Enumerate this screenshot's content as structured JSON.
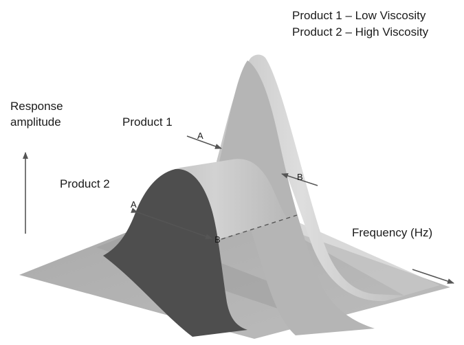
{
  "legend": {
    "line1": "Product 1 – Low Viscosity",
    "line2": "Product 2 – High Viscosity"
  },
  "y_axis": {
    "line1": "Response",
    "line2": "amplitude"
  },
  "x_axis": {
    "label": "Frequency (Hz)"
  },
  "products": {
    "p1": "Product 1",
    "p2": "Product 2"
  },
  "points": {
    "a": "A",
    "b": "B"
  },
  "colors": {
    "base": "#b3b3b3",
    "base_dark": "#8e8e8e",
    "peak1_front": "#b5b5b5",
    "peak1_top": "#d6d6d6",
    "peak2_front": "#4e4e4e",
    "peak2_top": "#c7c7c7",
    "arrow": "#555555"
  }
}
